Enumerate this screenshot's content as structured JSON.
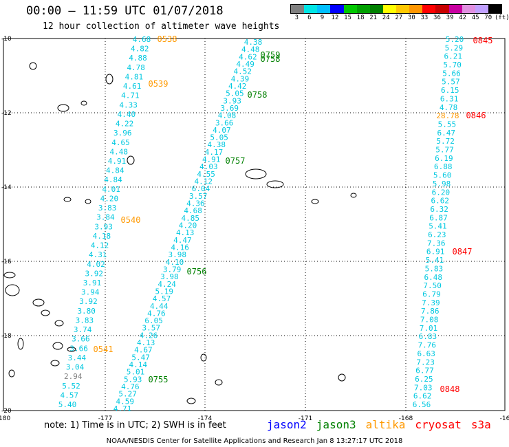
{
  "title": "00:00 — 11:59 UTC 01/07/2018",
  "subtitle": "12 hour collection of altimeter wave heights",
  "scale": {
    "labels": [
      "3",
      "6",
      "9",
      "12",
      "15",
      "18",
      "21",
      "24",
      "27",
      "30",
      "33",
      "36",
      "39",
      "42",
      "45",
      "70",
      "(ft)"
    ],
    "colors": [
      "#808080",
      "#00e5e5",
      "#00bfff",
      "#0000ff",
      "#00c800",
      "#00a000",
      "#008000",
      "#ffff00",
      "#ffc800",
      "#ff9600",
      "#ff0000",
      "#c80000",
      "#c800a0",
      "#e090e0",
      "#c0a0ff",
      "#000000"
    ]
  },
  "axes": {
    "x_ticks": [
      "-180",
      "-177",
      "-174",
      "-171",
      "-168",
      "-16"
    ],
    "y_ticks": [
      "-10",
      "-12",
      "-14",
      "-16",
      "-18",
      "-20"
    ]
  },
  "tracks": [
    {
      "satellite": "altika",
      "color": "#ff9900",
      "times": [
        "0538",
        "0539",
        "0540",
        "0541"
      ],
      "values": [
        "4.68",
        "4.82",
        "4.88",
        "4.78",
        "4.81",
        "4.61",
        "4.71",
        "4.33",
        "4.40",
        "4.22",
        "3.96",
        "4.65",
        "4.48",
        "4.91",
        "4.84",
        "4.84",
        "4.01",
        "4.20",
        "3.83",
        "3.84",
        "3.93",
        "4.18",
        "4.12",
        "4.31",
        "4.02",
        "3.92",
        "3.91",
        "3.94",
        "3.92",
        "3.80",
        "3.83",
        "3.74",
        "3.66",
        "3.66",
        "3.44",
        "3.04",
        "2.94",
        "5.52",
        "4.57",
        "5.40"
      ]
    },
    {
      "satellite": "jason3-a",
      "color": "#008000",
      "times": [
        "0759",
        "0758",
        "0758",
        "0757",
        "0756",
        "0755"
      ],
      "values": [
        "4.38",
        "4.48",
        "4.62",
        "4.49",
        "4.52",
        "4.39",
        "4.42",
        "5.05",
        "3.93",
        "3.69",
        "4.08",
        "3.66",
        "4.07",
        "5.05",
        "4.38",
        "4.17",
        "4.91",
        "4.03",
        "4.55",
        "4.12",
        "6.04",
        "3.57",
        "4.36",
        "4.68",
        "4.85",
        "4.20",
        "4.13",
        "4.47",
        "4.16",
        "3.98",
        "4.10",
        "3.79",
        "3.98",
        "4.24",
        "5.19",
        "4.57",
        "4.44",
        "4.76",
        "6.05",
        "3.57",
        "4.26",
        "4.13",
        "4.67",
        "5.47",
        "4.14",
        "5.01",
        "5.93",
        "4.76",
        "5.27",
        "4.59",
        "4.71"
      ]
    },
    {
      "satellite": "cryosat",
      "color": "#ff0000",
      "times": [
        "0845",
        "0846",
        "0847",
        "0848"
      ],
      "values": [
        "5.20",
        "5.29",
        "6.21",
        "5.70",
        "5.66",
        "5.57",
        "6.15",
        "6.31",
        "4.78",
        "28.78",
        "5.55",
        "6.47",
        "5.72",
        "5.77",
        "6.19",
        "6.88",
        "5.60",
        "5.98",
        "6.20",
        "6.62",
        "6.32",
        "6.87",
        "5.41",
        "6.23",
        "7.36",
        "6.91",
        "5.41",
        "5.83",
        "6.48",
        "7.50",
        "6.79",
        "7.39",
        "7.86",
        "7.08",
        "7.01",
        "6.83",
        "7.76",
        "6.63",
        "7.23",
        "6.77",
        "6.25",
        "7.03",
        "6.62",
        "6.56"
      ]
    }
  ],
  "note": "note: 1) Time is in UTC; 2) SWH is in feet",
  "legend": [
    {
      "name": "jason2",
      "color": "#0000ff"
    },
    {
      "name": "jason3",
      "color": "#008000"
    },
    {
      "name": "altika",
      "color": "#ff9900"
    },
    {
      "name": "cryosat",
      "color": "#ff0000"
    },
    {
      "name": "s3a",
      "color": "#ff0000"
    }
  ],
  "footer": "NOAA/NESDIS Center for Satellite Applications and Research   Jan  8 13:27:17 UTC 2018"
}
